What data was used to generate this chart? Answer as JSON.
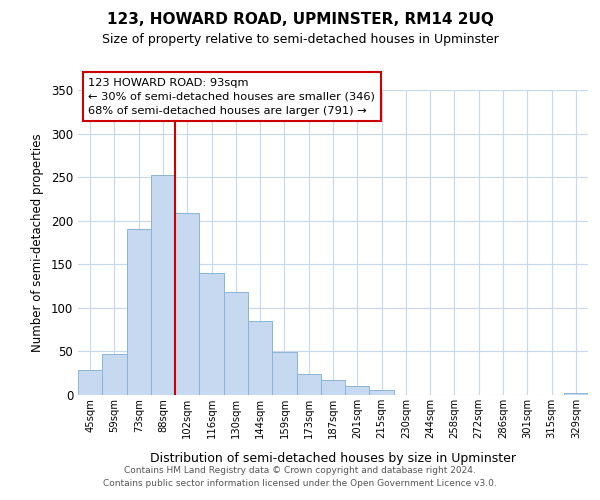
{
  "title": "123, HOWARD ROAD, UPMINSTER, RM14 2UQ",
  "subtitle": "Size of property relative to semi-detached houses in Upminster",
  "xlabel": "Distribution of semi-detached houses by size in Upminster",
  "ylabel": "Number of semi-detached properties",
  "bar_labels": [
    "45sqm",
    "59sqm",
    "73sqm",
    "88sqm",
    "102sqm",
    "116sqm",
    "130sqm",
    "144sqm",
    "159sqm",
    "173sqm",
    "187sqm",
    "201sqm",
    "215sqm",
    "230sqm",
    "244sqm",
    "258sqm",
    "272sqm",
    "286sqm",
    "301sqm",
    "315sqm",
    "329sqm"
  ],
  "bar_values": [
    29,
    47,
    190,
    253,
    209,
    140,
    118,
    85,
    49,
    24,
    17,
    10,
    6,
    0,
    0,
    0,
    0,
    0,
    0,
    0,
    2
  ],
  "bar_color": "#c6d9f0",
  "bar_edge_color": "#8ab4d8",
  "ylim": [
    0,
    350
  ],
  "yticks": [
    0,
    50,
    100,
    150,
    200,
    250,
    300,
    350
  ],
  "vline_x_idx": 3.5,
  "vline_color": "#cc0000",
  "annotation_title": "123 HOWARD ROAD: 93sqm",
  "annotation_line1": "← 30% of semi-detached houses are smaller (346)",
  "annotation_line2": "68% of semi-detached houses are larger (791) →",
  "annotation_box_color": "#ffffff",
  "annotation_box_edge": "#cc0000",
  "footer_line1": "Contains HM Land Registry data © Crown copyright and database right 2024.",
  "footer_line2": "Contains public sector information licensed under the Open Government Licence v3.0.",
  "background_color": "#ffffff",
  "grid_color": "#c8d8ec"
}
